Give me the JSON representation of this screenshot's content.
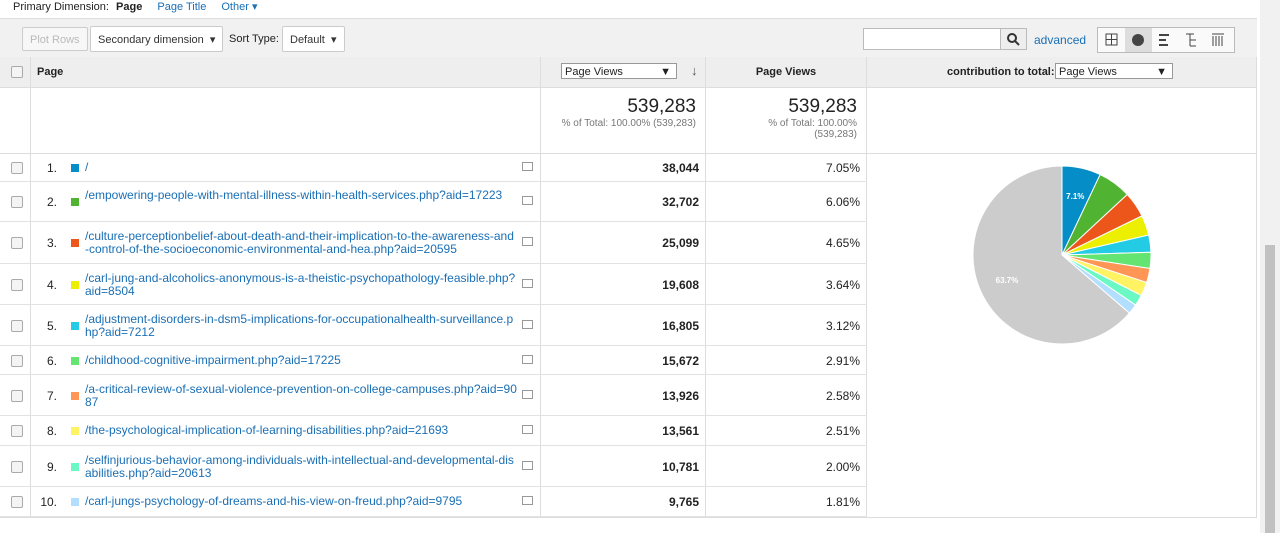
{
  "primary_dimension": {
    "label": "Primary Dimension:",
    "active": "Page",
    "options": [
      "Page Title",
      "Other"
    ]
  },
  "toolbar": {
    "plot_rows": "Plot Rows",
    "secondary": "Secondary dimension",
    "sort_label": "Sort Type:",
    "sort_value": "Default",
    "advanced": "advanced"
  },
  "table": {
    "headers": {
      "page": "Page",
      "metric_select": "Page Views",
      "metric": "Page Views",
      "contribution_label": "contribution to total:",
      "contribution_select": "Page Views"
    },
    "totals": [
      {
        "value": "539,283",
        "note": "% of Total: 100.00% (539,283)"
      },
      {
        "value": "539,283",
        "note": "% of Total: 100.00% (539,283)"
      }
    ],
    "rows": [
      {
        "index": "1.",
        "page": "/",
        "views": "38,044",
        "percent": "7.05%"
      },
      {
        "index": "2.",
        "page": "/empowering-people-with-mental-illness-within-health-services.php?aid=17223",
        "views": "32,702",
        "percent": "6.06%"
      },
      {
        "index": "3.",
        "page": "/culture-perceptionbelief-about-death-and-their-implication-to-the-awareness-and-control-of-the-socioeconomic-environmental-and-hea.php?aid=20595",
        "views": "25,099",
        "percent": "4.65%"
      },
      {
        "index": "4.",
        "page": "/carl-jung-and-alcoholics-anonymous-is-a-theistic-psychopathology-feasible.php?aid=8504",
        "views": "19,608",
        "percent": "3.64%"
      },
      {
        "index": "5.",
        "page": "/adjustment-disorders-in-dsm5-implications-for-occupationalhealth-surveillance.php?aid=7212",
        "views": "16,805",
        "percent": "3.12%"
      },
      {
        "index": "6.",
        "page": "/childhood-cognitive-impairment.php?aid=17225",
        "views": "15,672",
        "percent": "2.91%"
      },
      {
        "index": "7.",
        "page": "/a-critical-review-of-sexual-violence-prevention-on-college-campuses.php?aid=9087",
        "views": "13,926",
        "percent": "2.58%"
      },
      {
        "index": "8.",
        "page": "/the-psychological-implication-of-learning-disabilities.php?aid=21693",
        "views": "13,561",
        "percent": "2.51%"
      },
      {
        "index": "9.",
        "page": "/selfinjurious-behavior-among-individuals-with-intellectual-and-developmental-disabilities.php?aid=20613",
        "views": "10,781",
        "percent": "2.00%"
      },
      {
        "index": "10.",
        "page": "/carl-jungs-psychology-of-dreams-and-his-view-on-freud.php?aid=9795",
        "views": "9,765",
        "percent": "1.81%"
      }
    ]
  },
  "pie": {
    "type": "pie",
    "values": [
      7.05,
      6.06,
      4.65,
      3.64,
      3.12,
      2.91,
      2.58,
      2.51,
      2.0,
      1.81,
      63.7
    ],
    "value_labels": [
      "7.1%",
      null,
      null,
      null,
      null,
      null,
      null,
      null,
      null,
      null,
      "63.7%"
    ],
    "colors": [
      "#058dc7",
      "#50b432",
      "#ed561b",
      "#edef00",
      "#24cbe5",
      "#64e572",
      "#ff9655",
      "#fff263",
      "#6af9c4",
      "#b2deff",
      "#cccccc"
    ]
  }
}
